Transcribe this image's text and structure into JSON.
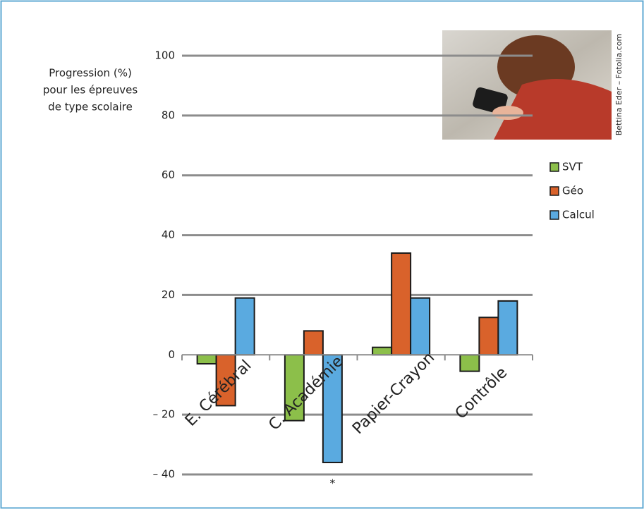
{
  "chart_data": {
    "type": "bar",
    "ylabel": [
      "Progression (%)",
      "pour les épreuves",
      "de type scolaire"
    ],
    "categories": [
      "E. Cérébral",
      "C. Académie",
      "Papier-Crayon",
      "Contrôle"
    ],
    "series": [
      {
        "name": "SVT",
        "color": "#8cbf4a",
        "values": [
          -3,
          -22,
          2.5,
          -5.5
        ]
      },
      {
        "name": "Géo",
        "color": "#d9622b",
        "values": [
          -17,
          8,
          34,
          12.5
        ]
      },
      {
        "name": "Calcul",
        "color": "#5aaae0",
        "values": [
          19,
          -36,
          19,
          18
        ]
      }
    ],
    "ylim": [
      -40,
      100
    ],
    "yticks": [
      {
        "value": -40,
        "label": "– 40"
      },
      {
        "value": -20,
        "label": "– 20"
      },
      0,
      20,
      40,
      60,
      80,
      100
    ],
    "grid": true,
    "annotation": "*",
    "photo_credit": "Bettina Eder – Fotolia.com"
  }
}
